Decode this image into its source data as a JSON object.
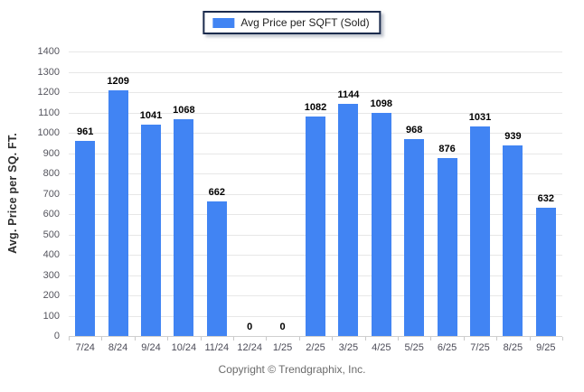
{
  "legend": {
    "label": "Avg Price per SQFT (Sold)"
  },
  "footer": {
    "copyright": "Copyright © Trendgraphix, Inc."
  },
  "chart_data": {
    "type": "bar",
    "title": "",
    "xlabel": "",
    "ylabel": "Avg. Price per SQ. FT.",
    "categories": [
      "7/24",
      "8/24",
      "9/24",
      "10/24",
      "11/24",
      "12/24",
      "1/25",
      "2/25",
      "3/25",
      "4/25",
      "5/25",
      "6/25",
      "7/25",
      "8/25",
      "9/25"
    ],
    "values": [
      961,
      1209,
      1041,
      1068,
      662,
      0,
      0,
      1082,
      1144,
      1098,
      968,
      876,
      1031,
      939,
      632
    ],
    "series_name": "Avg Price per SQFT (Sold)",
    "ylim": [
      0,
      1400
    ],
    "ytick_step": 100,
    "grid": true,
    "value_labels": true,
    "legend_position": "top-center",
    "bar_color": "#4184F3"
  },
  "colors": {
    "bar": "#4184F3",
    "gridline": "#e7e7e7",
    "axis_line": "#cfcfcf",
    "tick_label": "#4b4b57",
    "value_label": "#000000",
    "legend_border": "#1b2b4d",
    "footer_text": "#6b6b6b"
  }
}
